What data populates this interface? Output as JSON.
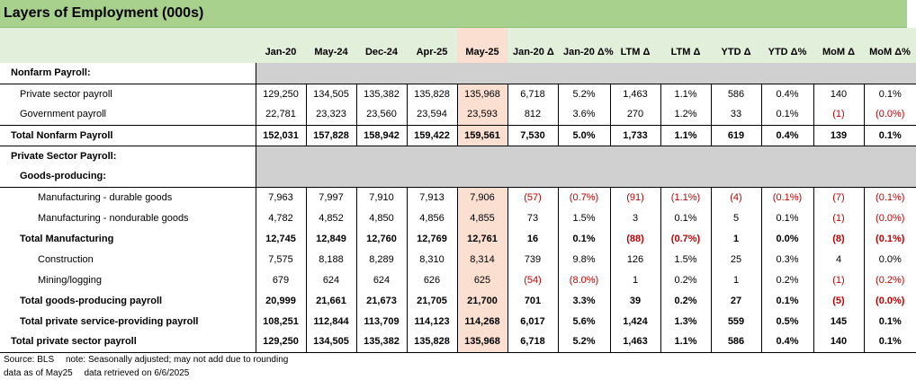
{
  "title": "Layers of Employment (000s)",
  "columns": [
    "Jan-20",
    "May-24",
    "Dec-24",
    "Apr-25",
    "May-25",
    "Jan-20 Δ",
    "Jan-20 Δ%",
    "LTM Δ",
    "LTM Δ",
    "YTD Δ",
    "YTD Δ%",
    "MoM Δ",
    "MoM Δ%"
  ],
  "rows": [
    {
      "label": "Nonfarm Payroll:",
      "values": []
    },
    {
      "label": "Private sector payroll",
      "values": [
        "129,250",
        "134,505",
        "135,382",
        "135,828",
        "135,968",
        "6,718",
        "5.2%",
        "1,463",
        "1.1%",
        "586",
        "0.4%",
        "140",
        "0.1%"
      ]
    },
    {
      "label": "Government payroll",
      "values": [
        "22,781",
        "23,323",
        "23,560",
        "23,594",
        "23,593",
        "812",
        "3.6%",
        "270",
        "1.2%",
        "33",
        "0.1%",
        "(1)",
        "(0.0%)"
      ]
    },
    {
      "label": "Total Nonfarm Payroll",
      "values": [
        "152,031",
        "157,828",
        "158,942",
        "159,422",
        "159,561",
        "7,530",
        "5.0%",
        "1,733",
        "1.1%",
        "619",
        "0.4%",
        "139",
        "0.1%"
      ]
    },
    {
      "label": "Private Sector Payroll:",
      "values": []
    },
    {
      "label": "Goods-producing:",
      "values": []
    },
    {
      "label": "Manufacturing - durable goods",
      "values": [
        "7,963",
        "7,997",
        "7,910",
        "7,913",
        "7,906",
        "(57)",
        "(0.7%)",
        "(91)",
        "(1.1%)",
        "(4)",
        "(0.1%)",
        "(7)",
        "(0.1%)"
      ]
    },
    {
      "label": "Manufacturing - nondurable goods",
      "values": [
        "4,782",
        "4,852",
        "4,850",
        "4,856",
        "4,855",
        "73",
        "1.5%",
        "3",
        "0.1%",
        "5",
        "0.1%",
        "(1)",
        "(0.0%)"
      ]
    },
    {
      "label": "Total Manufacturing",
      "values": [
        "12,745",
        "12,849",
        "12,760",
        "12,769",
        "12,761",
        "16",
        "0.1%",
        "(88)",
        "(0.7%)",
        "1",
        "0.0%",
        "(8)",
        "(0.1%)"
      ]
    },
    {
      "label": "Construction",
      "values": [
        "7,575",
        "8,188",
        "8,289",
        "8,310",
        "8,314",
        "739",
        "9.8%",
        "126",
        "1.5%",
        "25",
        "0.3%",
        "4",
        "0.0%"
      ]
    },
    {
      "label": "Mining/logging",
      "values": [
        "679",
        "624",
        "624",
        "626",
        "625",
        "(54)",
        "(8.0%)",
        "1",
        "0.2%",
        "1",
        "0.2%",
        "(1)",
        "(0.2%)"
      ]
    },
    {
      "label": "Total goods-producing payroll",
      "values": [
        "20,999",
        "21,661",
        "21,673",
        "21,705",
        "21,700",
        "701",
        "3.3%",
        "39",
        "0.2%",
        "27",
        "0.1%",
        "(5)",
        "(0.0%)"
      ]
    },
    {
      "label": "Total private service-providing payroll",
      "values": [
        "108,251",
        "112,844",
        "113,709",
        "114,123",
        "114,268",
        "6,017",
        "5.6%",
        "1,424",
        "1.3%",
        "559",
        "0.5%",
        "145",
        "0.1%"
      ]
    },
    {
      "label": "Total private sector payroll",
      "values": [
        "129,250",
        "134,505",
        "135,382",
        "135,828",
        "135,968",
        "6,718",
        "5.2%",
        "1,463",
        "1.1%",
        "586",
        "0.4%",
        "140",
        "0.1%"
      ]
    }
  ],
  "footer": {
    "source": "Source: BLS",
    "note": "note: Seasonally adjusted; may not add due to rounding",
    "data_as_of": "data as of May25",
    "retrieved": "data retrieved on 6/6/2025"
  },
  "colors": {
    "title_bg": "#a9d18e",
    "header_bg": "#e2efda",
    "highlight_col": "#fbe0d2",
    "section_fill": "#d0d0d0",
    "negative": "#c00000"
  }
}
